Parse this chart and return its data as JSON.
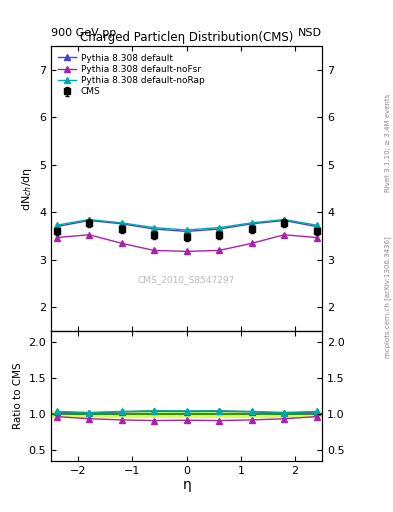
{
  "title": "Charged Particleη Distribution(CMS)",
  "top_left_label": "900 GeV pp",
  "top_right_label": "NSD",
  "right_label_top": "Rivet 3.1.10; ≥ 3.4M events",
  "right_label_bottom": "mcplots.cern.ch [arXiv:1306.3436]",
  "watermark": "CMS_2010_S8547297",
  "ylabel_main": "dN$_{ch}$/dη",
  "ylabel_ratio": "Ratio to CMS",
  "xlabel": "η",
  "xlim": [
    -2.5,
    2.5
  ],
  "ylim_main": [
    1.5,
    7.5
  ],
  "ylim_ratio": [
    0.35,
    2.15
  ],
  "yticks_main": [
    2,
    3,
    4,
    5,
    6,
    7
  ],
  "yticks_ratio": [
    0.5,
    1.0,
    1.5,
    2.0
  ],
  "cms_x": [
    -2.4,
    -1.8,
    -1.2,
    -0.6,
    0.0,
    0.6,
    1.2,
    1.8,
    2.4
  ],
  "cms_y": [
    3.6,
    3.78,
    3.65,
    3.52,
    3.48,
    3.52,
    3.65,
    3.78,
    3.6
  ],
  "cms_yerr": [
    0.08,
    0.08,
    0.08,
    0.08,
    0.08,
    0.08,
    0.08,
    0.08,
    0.08
  ],
  "pythia_default_x": [
    -2.4,
    -1.8,
    -1.2,
    -0.6,
    0.0,
    0.6,
    1.2,
    1.8,
    2.4
  ],
  "pythia_default_y": [
    3.7,
    3.83,
    3.76,
    3.65,
    3.6,
    3.65,
    3.76,
    3.83,
    3.7
  ],
  "pythia_nofsr_x": [
    -2.4,
    -1.8,
    -1.2,
    -0.6,
    0.0,
    0.6,
    1.2,
    1.8,
    2.4
  ],
  "pythia_nofsr_y": [
    3.47,
    3.53,
    3.35,
    3.2,
    3.18,
    3.2,
    3.35,
    3.53,
    3.47
  ],
  "pythia_norap_x": [
    -2.4,
    -1.8,
    -1.2,
    -0.6,
    0.0,
    0.6,
    1.2,
    1.8,
    2.4
  ],
  "pythia_norap_y": [
    3.73,
    3.85,
    3.78,
    3.68,
    3.63,
    3.68,
    3.78,
    3.85,
    3.73
  ],
  "cms_color": "#000000",
  "pythia_default_color": "#4444cc",
  "pythia_nofsr_color": "#aa22aa",
  "pythia_norap_color": "#00aaaa",
  "band_color": "#ccff00",
  "band_alpha": 0.6,
  "band_ylow": 0.96,
  "band_yhigh": 1.04,
  "legend_labels": [
    "CMS",
    "Pythia 8.308 default",
    "Pythia 8.308 default-noFsr",
    "Pythia 8.308 default-noRap"
  ]
}
